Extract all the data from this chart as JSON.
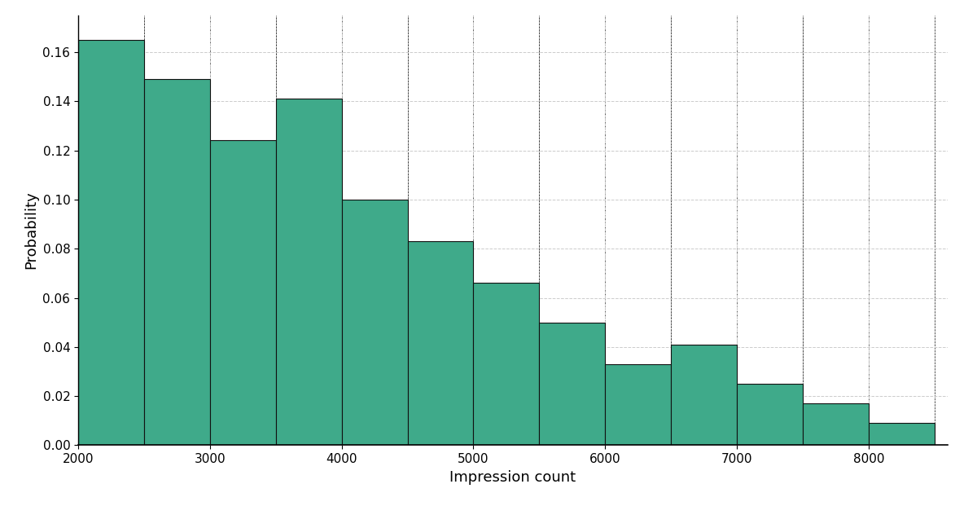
{
  "bin_edges": [
    2000,
    2500,
    3000,
    3500,
    4000,
    4500,
    5000,
    5500,
    6000,
    6500,
    7000,
    7500,
    8000,
    8500
  ],
  "bar_heights": [
    0.165,
    0.149,
    0.124,
    0.141,
    0.1,
    0.083,
    0.066,
    0.05,
    0.033,
    0.041,
    0.025,
    0.017,
    0.009
  ],
  "bar_color": "#3faa8a",
  "bar_edgecolor": "#111111",
  "bar_linewidth": 0.8,
  "xlabel": "Impression count",
  "ylabel": "Probability",
  "xlim": [
    2000,
    8600
  ],
  "ylim": [
    0,
    0.175
  ],
  "xticks": [
    2000,
    3000,
    4000,
    5000,
    6000,
    7000,
    8000
  ],
  "yticks": [
    0.0,
    0.02,
    0.04,
    0.06,
    0.08,
    0.1,
    0.12,
    0.14,
    0.16
  ],
  "grid_color": "#cccccc",
  "grid_linestyle": "--",
  "grid_linewidth": 0.7,
  "background_color": "#ffffff",
  "xlabel_fontsize": 13,
  "ylabel_fontsize": 13,
  "tick_fontsize": 11,
  "fig_width": 12.0,
  "fig_height": 6.21,
  "dpi": 100
}
